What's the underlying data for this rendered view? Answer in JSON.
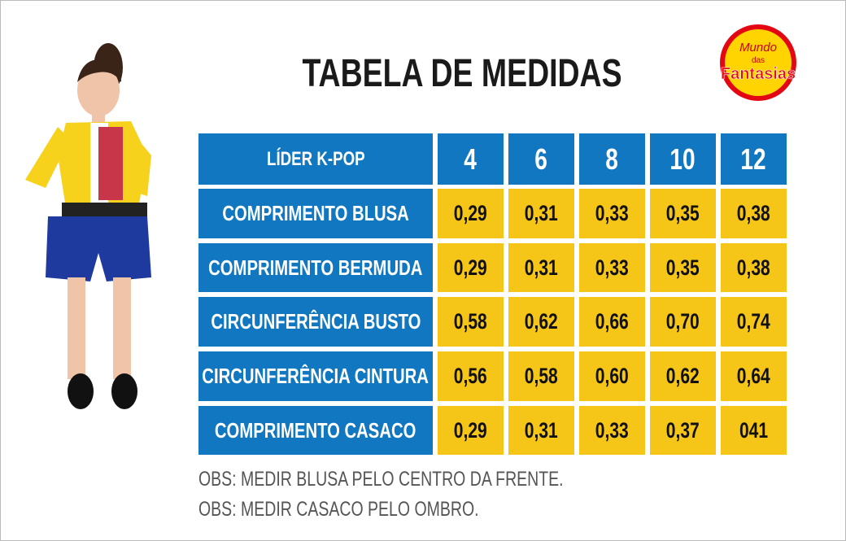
{
  "header": {
    "title": "TABELA DE MEDIDAS",
    "logo": [
      "Mundo",
      "das",
      "Fantasias"
    ]
  },
  "table": {
    "columns": [
      "LÍDER K-POP",
      "4",
      "6",
      "8",
      "10",
      "12"
    ],
    "rows": [
      [
        "COMPRIMENTO BLUSA",
        "0,29",
        "0,31",
        "0,33",
        "0,35",
        "0,38"
      ],
      [
        "COMPRIMENTO BERMUDA",
        "0,29",
        "0,31",
        "0,33",
        "0,35",
        "0,38"
      ],
      [
        "CIRCUNFERÊNCIA BUSTO",
        "0,58",
        "0,62",
        "0,66",
        "0,70",
        "0,74"
      ],
      [
        "CIRCUNFERÊNCIA CINTURA",
        "0,56",
        "0,58",
        "0,60",
        "0,62",
        "0,64"
      ],
      [
        "COMPRIMENTO CASACO",
        "0,29",
        "0,31",
        "0,33",
        "0,37",
        "041"
      ]
    ]
  },
  "notes": [
    "OBS: MEDIR BLUSA PELO CENTRO DA FRENTE.",
    "OBS: MEDIR CASACO PELO OMBRO."
  ]
}
